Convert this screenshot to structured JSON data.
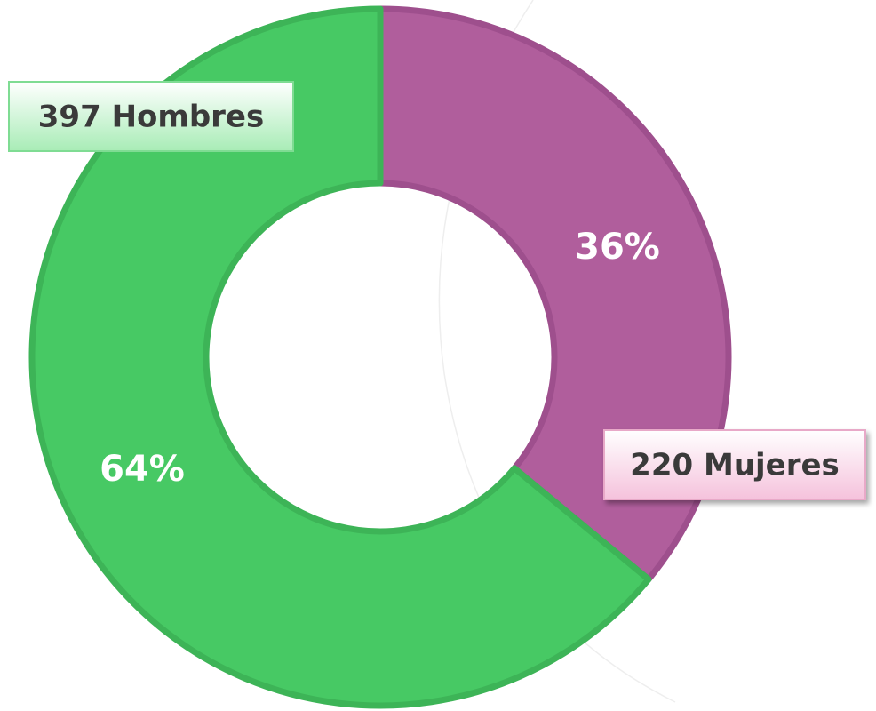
{
  "chart_data": {
    "type": "donut",
    "categories": [
      "Hombres",
      "Mujeres"
    ],
    "values": [
      64,
      36
    ],
    "value_labels": [
      "64%",
      "36%"
    ],
    "callouts": [
      "397 Hombres",
      "220 Mujeres"
    ],
    "colors": [
      "#47c964",
      "#b05e9c"
    ],
    "callout_colors": [
      "#c8f5d0",
      "#fbd9ea"
    ]
  }
}
